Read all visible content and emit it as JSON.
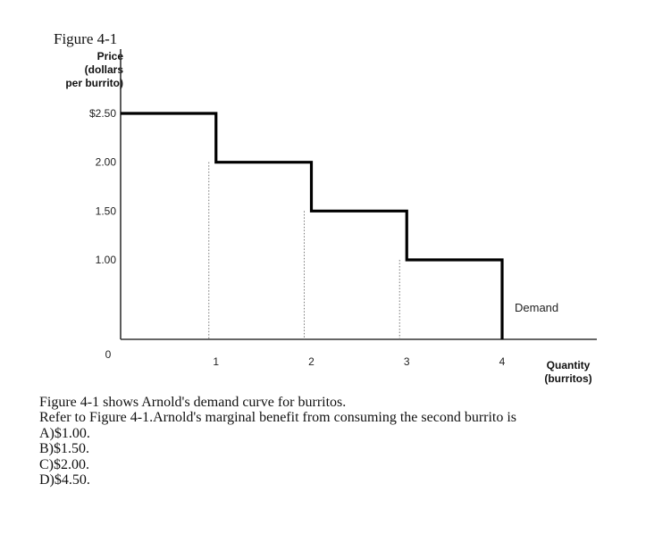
{
  "figure_label": "Figure 4-1",
  "question": {
    "caption": "Figure 4-1 shows Arnold's demand curve for burritos.",
    "prompt": "Refer to Figure 4-1.Arnold's marginal benefit from consuming the second burrito is",
    "answers": [
      "A)$1.00.",
      "B)$1.50.",
      "C)$2.00.",
      "D)$4.50."
    ]
  },
  "chart_data": {
    "type": "line",
    "title": "",
    "ylabel_lines": [
      "Price",
      "(dollars",
      "per burrito)"
    ],
    "xlabel_lines": [
      "Quantity",
      "(burritos)"
    ],
    "y_ticks": [
      {
        "value": 2.5,
        "label": "$2.50"
      },
      {
        "value": 2.0,
        "label": "2.00"
      },
      {
        "value": 1.5,
        "label": "1.50"
      },
      {
        "value": 1.0,
        "label": "1.00"
      }
    ],
    "x_ticks": [
      {
        "value": 1,
        "label": "1"
      },
      {
        "value": 2,
        "label": "2"
      },
      {
        "value": 3,
        "label": "3"
      },
      {
        "value": 4,
        "label": "4"
      }
    ],
    "origin_label": "0",
    "xlim": [
      0,
      5
    ],
    "ylim": [
      0,
      3
    ],
    "grid": false,
    "step_style": "stepped",
    "series": [
      {
        "name": "Demand",
        "color": "#000000",
        "steps": [
          {
            "from_q": 0,
            "to_q": 1,
            "price": 2.5
          },
          {
            "from_q": 1,
            "to_q": 2,
            "price": 2.0
          },
          {
            "from_q": 2,
            "to_q": 3,
            "price": 1.5
          },
          {
            "from_q": 3,
            "to_q": 4,
            "price": 1.0
          }
        ]
      }
    ]
  }
}
